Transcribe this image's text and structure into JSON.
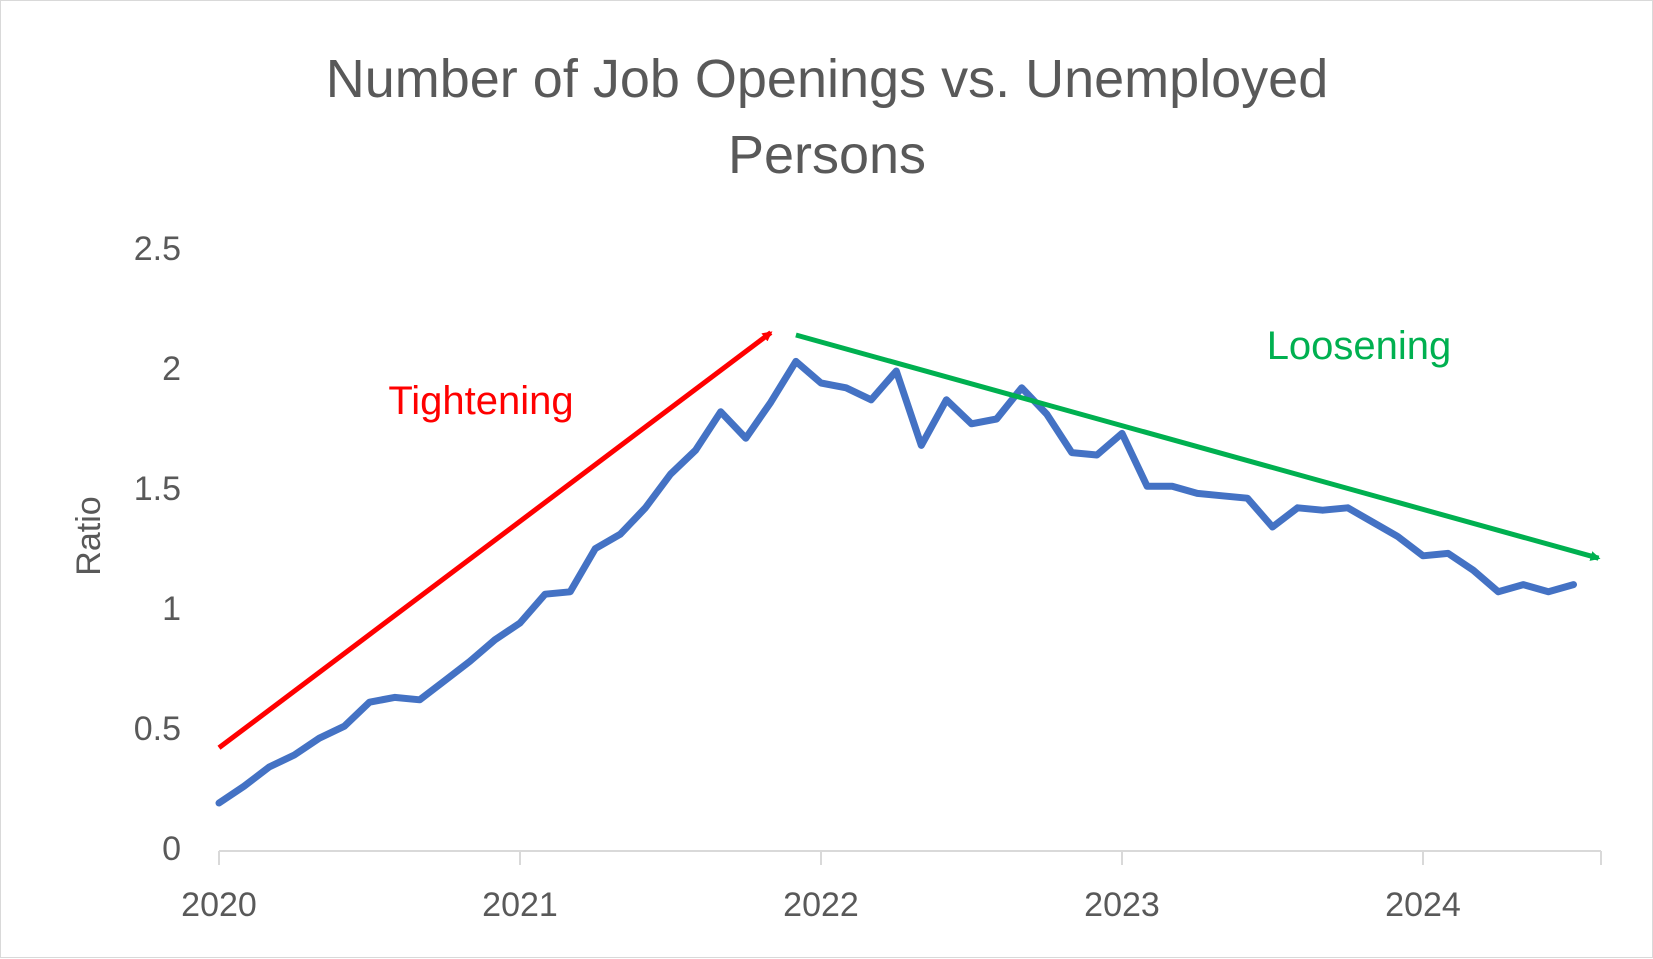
{
  "chart_data": {
    "type": "line",
    "title_lines": [
      "Number of Job Openings vs. Unemployed",
      "Persons"
    ],
    "xlabel": "",
    "ylabel": "Ratio",
    "x_ticks": [
      "2020",
      "2021",
      "2022",
      "2023",
      "2024"
    ],
    "y_ticks": [
      "0",
      "0.5",
      "1",
      "1.5",
      "2",
      "2.5"
    ],
    "ylim": [
      0,
      2.5
    ],
    "grid": false,
    "legend": "none",
    "series": [
      {
        "color": "#4472c4",
        "x": [
          "2020-01",
          "2020-02",
          "2020-03",
          "2020-04",
          "2020-05",
          "2020-06",
          "2020-07",
          "2020-08",
          "2020-09",
          "2020-10",
          "2020-11",
          "2020-12",
          "2021-01",
          "2021-02",
          "2021-03",
          "2021-04",
          "2021-05",
          "2021-06",
          "2021-07",
          "2021-08",
          "2021-09",
          "2021-10",
          "2021-11",
          "2021-12",
          "2022-01",
          "2022-02",
          "2022-03",
          "2022-04",
          "2022-05",
          "2022-06",
          "2022-07",
          "2022-08",
          "2022-09",
          "2022-10",
          "2022-11",
          "2022-12",
          "2023-01",
          "2023-02",
          "2023-03",
          "2023-04",
          "2023-05",
          "2023-06",
          "2023-07",
          "2023-08",
          "2023-09",
          "2023-10",
          "2023-11",
          "2023-12",
          "2024-01",
          "2024-02",
          "2024-03",
          "2024-04",
          "2024-05",
          "2024-06",
          "2024-07"
        ],
        "values": [
          0.2,
          0.27,
          0.35,
          0.4,
          0.47,
          0.52,
          0.62,
          0.64,
          0.63,
          0.71,
          0.79,
          0.88,
          0.95,
          1.07,
          1.08,
          1.26,
          1.32,
          1.43,
          1.57,
          1.67,
          1.83,
          1.72,
          1.87,
          2.04,
          1.95,
          1.93,
          1.88,
          2.0,
          1.69,
          1.88,
          1.78,
          1.8,
          1.93,
          1.82,
          1.66,
          1.65,
          1.74,
          1.52,
          1.52,
          1.49,
          1.48,
          1.47,
          1.35,
          1.43,
          1.42,
          1.43,
          1.37,
          1.31,
          1.23,
          1.24,
          1.17,
          1.08,
          1.11,
          1.08,
          1.11
        ]
      }
    ],
    "annotations": [
      {
        "text": "Tightening",
        "color": "#ff0000",
        "from": [
          "2020-01",
          0.43
        ],
        "to": [
          "2021-11",
          2.16
        ]
      },
      {
        "text": "Loosening",
        "color": "#00b050",
        "from": [
          "2021-12",
          2.15
        ],
        "to": [
          "2024-08",
          1.22
        ]
      }
    ]
  }
}
